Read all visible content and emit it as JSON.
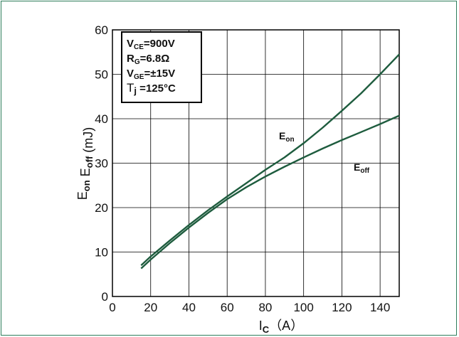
{
  "chart_data": {
    "type": "line",
    "xlabel": "I",
    "xlabel_sub": "C",
    "xlabel_unit": "（A）",
    "ylabel_parts": [
      {
        "t": "E",
        "sub": "on"
      },
      {
        "t": " E",
        "sub": "off"
      },
      {
        "t": " (mJ)",
        "sub": ""
      }
    ],
    "xlim": [
      0,
      150
    ],
    "ylim": [
      0,
      60
    ],
    "x_ticks": [
      "0",
      "20",
      "40",
      "60",
      "80",
      "100",
      "120",
      "140"
    ],
    "y_ticks": [
      "0",
      "10",
      "20",
      "30",
      "40",
      "50",
      "60"
    ],
    "grid": true,
    "conditions": [
      {
        "main": "V",
        "sub": "CE",
        "rest": "=900V"
      },
      {
        "main": "R",
        "sub": "G",
        "rest": "=6.8Ω"
      },
      {
        "main": "V",
        "sub": "GE",
        "rest": "=±15V"
      },
      {
        "main": "T",
        "sub": "j",
        "rest": " =125°C"
      }
    ],
    "series": [
      {
        "name": "E_on",
        "label_main": "E",
        "label_sub": "on",
        "x": [
          15,
          20,
          30,
          40,
          50,
          60,
          70,
          80,
          90,
          100,
          110,
          120,
          130,
          140,
          150
        ],
        "y": [
          7.0,
          9.0,
          12.6,
          16.1,
          19.4,
          22.5,
          25.5,
          28.5,
          31.3,
          34.5,
          38.0,
          41.8,
          45.7,
          50.0,
          54.5
        ]
      },
      {
        "name": "E_off",
        "label_main": "E",
        "label_sub": "off",
        "x": [
          15,
          20,
          30,
          40,
          50,
          60,
          70,
          80,
          90,
          100,
          110,
          120,
          130,
          140,
          150
        ],
        "y": [
          6.3,
          8.3,
          12.0,
          15.5,
          18.8,
          21.9,
          24.6,
          27.0,
          29.2,
          31.3,
          33.3,
          35.2,
          37.0,
          38.8,
          40.7
        ]
      }
    ]
  }
}
